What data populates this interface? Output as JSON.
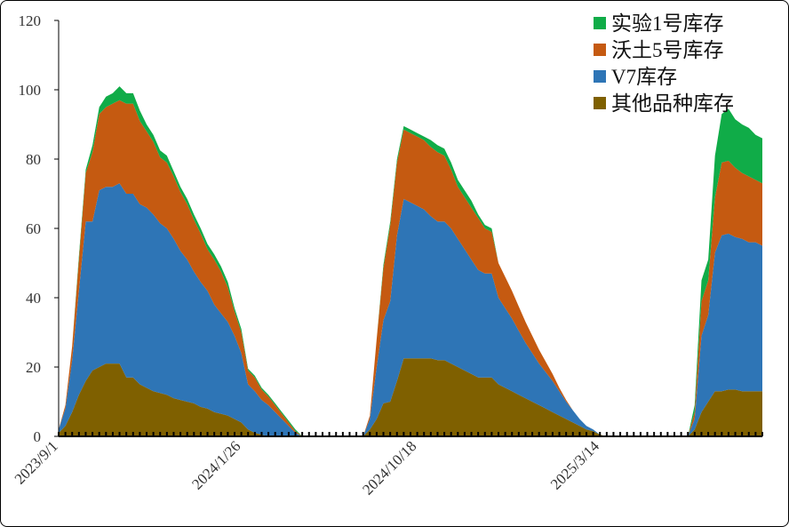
{
  "chart_data": {
    "type": "area",
    "stacked": true,
    "ylim": [
      0,
      120
    ],
    "yticks": [
      0,
      20,
      40,
      60,
      80,
      100,
      120
    ],
    "xlim": [
      0,
      104
    ],
    "x_tick_labels": [
      {
        "x": 0,
        "label": "2023/9/1"
      },
      {
        "x": 27,
        "label": "2024/1/26"
      },
      {
        "x": 53,
        "label": "2024/10/18"
      },
      {
        "x": 80,
        "label": "2025/3/14"
      }
    ],
    "legend": [
      "实验1号库存",
      "沃土5号库存",
      "V7库存",
      "其他品种库存"
    ],
    "colors": {
      "实验1号库存": "#10ac48",
      "沃土5号库存": "#c55a11",
      "V7库存": "#2e75b6",
      "其他品种库存": "#7f6000"
    },
    "segments": [
      {
        "x": [
          0,
          1,
          2,
          3,
          4,
          5,
          6,
          7,
          8,
          9,
          10,
          11,
          12,
          13,
          14,
          15,
          16,
          17,
          18,
          19,
          20,
          21,
          22,
          23,
          24,
          25,
          26,
          27,
          28,
          29,
          30,
          31,
          32,
          33,
          34,
          35,
          36,
          37,
          38,
          39,
          40,
          41,
          42,
          43
        ],
        "series": [
          {
            "name": "其他品种库存",
            "values": [
              1,
              3,
              7,
              12,
              16,
              19,
              20,
              21,
              21,
              21,
              17,
              17,
              15,
              14,
              13,
              12.5,
              12,
              11,
              10.5,
              10,
              9.5,
              8.5,
              8,
              7,
              6.5,
              6,
              5,
              4,
              2,
              1,
              0.5,
              0,
              0,
              0,
              0,
              0,
              0,
              0,
              0,
              0,
              0,
              0,
              0,
              0
            ]
          },
          {
            "name": "V7库存",
            "values": [
              1,
              5,
              15,
              30,
              46,
              43,
              51,
              51,
              51,
              52,
              53,
              53,
              52,
              52,
              51,
              49,
              48,
              46,
              43,
              41,
              38,
              36,
              34,
              31,
              29,
              27,
              24,
              20,
              13,
              12,
              10,
              9,
              7,
              5,
              3,
              1,
              0,
              0,
              0,
              0,
              0,
              0,
              0,
              0
            ]
          },
          {
            "name": "沃土5号库存",
            "values": [
              0,
              1,
              4,
              9,
              14,
              20,
              22,
              23,
              24,
              24,
              26,
              26,
              24,
              22,
              21,
              19,
              19,
              18,
              17,
              16,
              15,
              14,
              12,
              13,
              12,
              10,
              7,
              6,
              4,
              4,
              3,
              2.5,
              2,
              1.5,
              1,
              0.5,
              0,
              0,
              0,
              0,
              0,
              0,
              0,
              0
            ]
          },
          {
            "name": "实验1号库存",
            "values": [
              0,
              0,
              0,
              1,
              1,
              2,
              2,
              3,
              3,
              4,
              3,
              3,
              3,
              2,
              2,
              2,
              2,
              1.5,
              1.5,
              1.5,
              1.5,
              1.5,
              1.5,
              1.5,
              1.5,
              1.5,
              1,
              1,
              0.5,
              0.5,
              0.5,
              0.5,
              0.5,
              0.5,
              0.5,
              0.5,
              0,
              0,
              0,
              0,
              0,
              0,
              0,
              0
            ]
          }
        ]
      },
      {
        "x": [
          45,
          46,
          47,
          48,
          49,
          50,
          51,
          52,
          53,
          54,
          55,
          56,
          57,
          58,
          59,
          60,
          61,
          62,
          63,
          64,
          65,
          66,
          67,
          68,
          69,
          70,
          71,
          72,
          73,
          74,
          75,
          76,
          77,
          78,
          79,
          80,
          81,
          82,
          83,
          84,
          85,
          86,
          87,
          88,
          89,
          90
        ],
        "series": [
          {
            "name": "其他品种库存",
            "values": [
              0,
              2,
              5,
              9.5,
              10,
              16,
              22.5,
              22.5,
              22.5,
              22.5,
              22.5,
              22,
              22,
              21,
              20,
              19,
              18,
              17,
              17,
              17,
              15,
              14,
              13,
              12,
              11,
              10,
              9,
              8,
              7,
              6,
              5,
              4,
              3,
              2,
              1.5,
              0.5,
              0,
              0,
              0,
              0,
              0,
              0,
              0,
              0,
              0,
              0
            ]
          },
          {
            "name": "V7库存",
            "values": [
              0,
              3,
              15,
              24,
              29,
              42,
              46,
              45,
              44,
              43,
              41,
              40,
              40,
              39,
              37,
              35,
              33,
              31,
              30,
              30,
              25,
              23,
              21,
              18.5,
              16,
              14,
              12,
              10.5,
              9,
              7,
              5,
              3.5,
              2,
              1,
              0.5,
              0,
              0,
              0,
              0,
              0,
              0,
              0,
              0,
              0,
              0,
              0
            ]
          },
          {
            "name": "沃土5号库存",
            "values": [
              0,
              1,
              8,
              15,
              22,
              21,
              20,
              20,
              20,
              20,
              20,
              20,
              19,
              17,
              15,
              15,
              15,
              15,
              13,
              12,
              10,
              9,
              8,
              7,
              6,
              5,
              4,
              3,
              2,
              1,
              0.5,
              0,
              0,
              0,
              0,
              0,
              0,
              0,
              0,
              0,
              0,
              0,
              0,
              0,
              0,
              0
            ]
          },
          {
            "name": "实验1号库存",
            "values": [
              0,
              0,
              0,
              1,
              1,
              1,
              1,
              1,
              1,
              1,
              2,
              2,
              2,
              2,
              2,
              2,
              2,
              1,
              1,
              1,
              0,
              0,
              0,
              0,
              0,
              0,
              0,
              0,
              0,
              0,
              0,
              0,
              0,
              0,
              0,
              0,
              0,
              0,
              0,
              0,
              0,
              0,
              0,
              0,
              0,
              0
            ]
          }
        ]
      },
      {
        "x": [
          93,
          94,
          95,
          96,
          97,
          98,
          99,
          100,
          101,
          102,
          103,
          104
        ],
        "series": [
          {
            "name": "其他品种库存",
            "values": [
              0,
              2,
              7,
              10,
              13,
              13,
              13.5,
              13.5,
              13,
              13,
              13,
              13
            ]
          },
          {
            "name": "V7库存",
            "values": [
              0,
              3,
              22,
              25,
              40,
              45,
              45,
              44,
              44,
              43,
              43,
              42
            ]
          },
          {
            "name": "沃土5号库存",
            "values": [
              0,
              2,
              10,
              10,
              16,
              21,
              21,
              20,
              19,
              19,
              18,
              18
            ]
          },
          {
            "name": "实验1号库存",
            "values": [
              0,
              2,
              6,
              6,
              12,
              14,
              15,
              14,
              14,
              14,
              13,
              13
            ]
          }
        ]
      }
    ]
  }
}
